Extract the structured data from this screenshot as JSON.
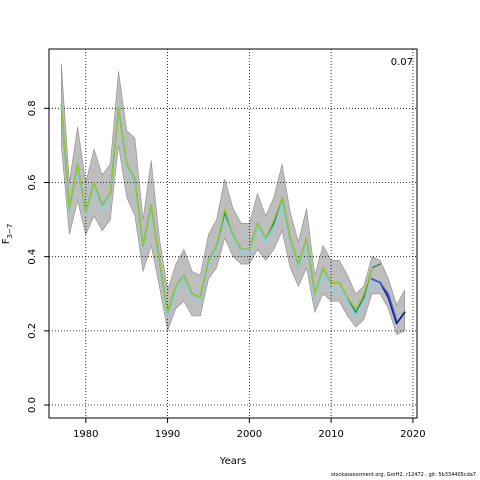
{
  "chart_data": {
    "type": "line",
    "xlabel": "Years",
    "ylabel_main": "F",
    "ylabel_sub": "3−7",
    "annotation": "0.07",
    "xlim": [
      1975.5,
      2020.5
    ],
    "ylim": [
      -0.035,
      0.96
    ],
    "x_ticks": [
      1980,
      1990,
      2000,
      2010,
      2020
    ],
    "y_ticks": [
      0.0,
      0.2,
      0.4,
      0.6,
      0.8
    ],
    "y_tick_labels": [
      "0.0",
      "0.2",
      "0.4",
      "0.6",
      "0.8"
    ],
    "grid": true,
    "band": {
      "color": "#bebebe",
      "x": [
        1977,
        1978,
        1979,
        1980,
        1981,
        1982,
        1983,
        1984,
        1985,
        1986,
        1987,
        1988,
        1989,
        1990,
        1991,
        1992,
        1993,
        1994,
        1995,
        1996,
        1997,
        1998,
        1999,
        2000,
        2001,
        2002,
        2003,
        2004,
        2005,
        2006,
        2007,
        2008,
        2009,
        2010,
        2011,
        2012,
        2013,
        2014,
        2015,
        2016,
        2017,
        2018,
        2019
      ],
      "lower": [
        0.7,
        0.46,
        0.55,
        0.46,
        0.51,
        0.47,
        0.5,
        0.7,
        0.56,
        0.51,
        0.36,
        0.43,
        0.32,
        0.2,
        0.26,
        0.28,
        0.24,
        0.24,
        0.34,
        0.37,
        0.45,
        0.4,
        0.38,
        0.38,
        0.42,
        0.39,
        0.42,
        0.47,
        0.37,
        0.32,
        0.37,
        0.25,
        0.3,
        0.28,
        0.28,
        0.24,
        0.21,
        0.23,
        0.3,
        0.3,
        0.26,
        0.19,
        0.2
      ],
      "upper": [
        0.92,
        0.6,
        0.75,
        0.6,
        0.69,
        0.62,
        0.65,
        0.9,
        0.74,
        0.72,
        0.5,
        0.66,
        0.45,
        0.31,
        0.38,
        0.42,
        0.36,
        0.35,
        0.46,
        0.5,
        0.61,
        0.53,
        0.49,
        0.49,
        0.57,
        0.51,
        0.56,
        0.65,
        0.52,
        0.44,
        0.53,
        0.35,
        0.43,
        0.39,
        0.39,
        0.35,
        0.3,
        0.32,
        0.4,
        0.39,
        0.34,
        0.27,
        0.31
      ]
    },
    "series": [
      {
        "color": "#87ceeb",
        "width": 1.5,
        "x": [
          1977,
          1978,
          1979,
          1980,
          1981,
          1982,
          1983,
          1984,
          1985,
          1986,
          1987,
          1988,
          1989,
          1990,
          1991,
          1992,
          1993,
          1994,
          1995,
          1996,
          1997,
          1998,
          1999,
          2000,
          2001,
          2002,
          2003,
          2004,
          2005,
          2006,
          2007,
          2008,
          2009,
          2010,
          2011,
          2012,
          2013,
          2014,
          2015,
          2016
        ],
        "values": [
          0.8,
          0.52,
          0.64,
          0.51,
          0.59,
          0.53,
          0.56,
          0.79,
          0.64,
          0.6,
          0.42,
          0.53,
          0.38,
          0.24,
          0.31,
          0.34,
          0.29,
          0.28,
          0.38,
          0.42,
          0.51,
          0.45,
          0.41,
          0.41,
          0.48,
          0.44,
          0.48,
          0.54,
          0.44,
          0.37,
          0.43,
          0.29,
          0.35,
          0.31,
          0.31,
          0.28,
          0.24,
          0.27,
          0.33,
          0.31
        ]
      },
      {
        "color": "#2e8b57",
        "width": 1.5,
        "x": [
          1977,
          1978,
          1979,
          1980,
          1981,
          1982,
          1983,
          1984,
          1985,
          1986,
          1987,
          1988,
          1989,
          1990,
          1991,
          1992,
          1993,
          1994,
          1995,
          1996,
          1997,
          1998,
          1999,
          2000,
          2001,
          2002,
          2003,
          2004,
          2005,
          2006,
          2007,
          2008,
          2009,
          2010,
          2011,
          2012,
          2013,
          2014,
          2015,
          2016
        ],
        "values": [
          0.81,
          0.53,
          0.65,
          0.52,
          0.6,
          0.54,
          0.57,
          0.8,
          0.65,
          0.61,
          0.43,
          0.54,
          0.39,
          0.25,
          0.32,
          0.35,
          0.3,
          0.29,
          0.39,
          0.43,
          0.52,
          0.46,
          0.42,
          0.42,
          0.49,
          0.45,
          0.49,
          0.56,
          0.45,
          0.38,
          0.45,
          0.3,
          0.37,
          0.33,
          0.33,
          0.29,
          0.25,
          0.29,
          0.37,
          0.38
        ]
      },
      {
        "color": "#1c1c8c",
        "width": 1.8,
        "x": [
          2015,
          2016,
          2017,
          2018,
          2019
        ],
        "values": [
          0.34,
          0.33,
          0.29,
          0.22,
          0.25
        ]
      },
      {
        "color": "#4169e1",
        "width": 1.3,
        "x": [
          2015,
          2016,
          2017,
          2018
        ],
        "values": [
          0.34,
          0.33,
          0.3,
          0.23
        ]
      },
      {
        "color": "#9acd32",
        "width": 1.3,
        "x": [
          1977,
          1978,
          1979,
          1980,
          1981,
          1982,
          1983,
          1984,
          1985,
          1986,
          1987,
          1988,
          1989,
          1990,
          1991,
          1992,
          1993,
          1994,
          1995,
          1996,
          1997,
          1998,
          1999,
          2000,
          2001,
          2002,
          2003,
          2004,
          2005,
          2006,
          2007,
          2008,
          2009,
          2010,
          2011,
          2012,
          2013,
          2014,
          2015
        ],
        "values": [
          0.81,
          0.53,
          0.65,
          0.52,
          0.6,
          0.54,
          0.57,
          0.8,
          0.65,
          0.61,
          0.43,
          0.54,
          0.39,
          0.25,
          0.32,
          0.35,
          0.3,
          0.29,
          0.39,
          0.43,
          0.53,
          0.46,
          0.42,
          0.42,
          0.49,
          0.45,
          0.5,
          0.56,
          0.45,
          0.38,
          0.45,
          0.3,
          0.37,
          0.33,
          0.33,
          0.29,
          0.26,
          0.3,
          0.37
        ]
      }
    ]
  },
  "footer": "stockassessment.org, GorH2, r12472 , git: 5b334405cda7"
}
